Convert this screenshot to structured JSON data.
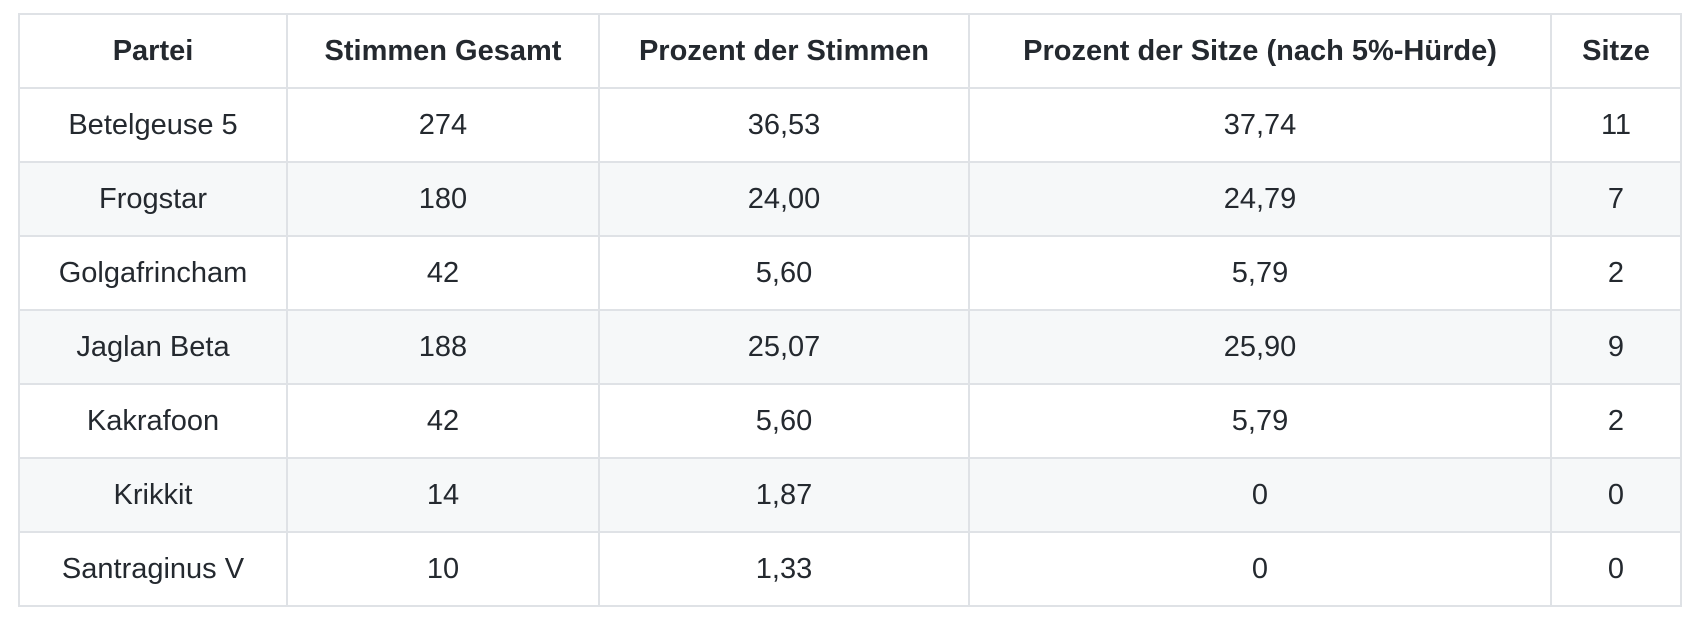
{
  "colors": {
    "background": "#ffffff",
    "border": "#dfe2e6",
    "stripe": "#f6f8f9",
    "text": "#24292f"
  },
  "chart_data": {
    "type": "table",
    "columns": [
      "Partei",
      "Stimmen Gesamt",
      "Prozent der Stimmen",
      "Prozent der Sitze (nach 5%-Hürde)",
      "Sitze"
    ],
    "rows": [
      [
        "Betelgeuse 5",
        "274",
        "36,53",
        "37,74",
        "11"
      ],
      [
        "Frogstar",
        "180",
        "24,00",
        "24,79",
        "7"
      ],
      [
        "Golgafrincham",
        "42",
        "5,60",
        "5,79",
        "2"
      ],
      [
        "Jaglan Beta",
        "188",
        "25,07",
        "25,90",
        "9"
      ],
      [
        "Kakrafoon",
        "42",
        "5,60",
        "5,79",
        "2"
      ],
      [
        "Krikkit",
        "14",
        "1,87",
        "0",
        "0"
      ],
      [
        "Santraginus V",
        "10",
        "1,33",
        "0",
        "0"
      ]
    ],
    "column_keys": [
      "partei",
      "stimmen-gesamt",
      "prozent-stimmen",
      "prozent-sitze",
      "sitze"
    ],
    "row_striping": "even-rows-gray",
    "alignment": "center"
  }
}
